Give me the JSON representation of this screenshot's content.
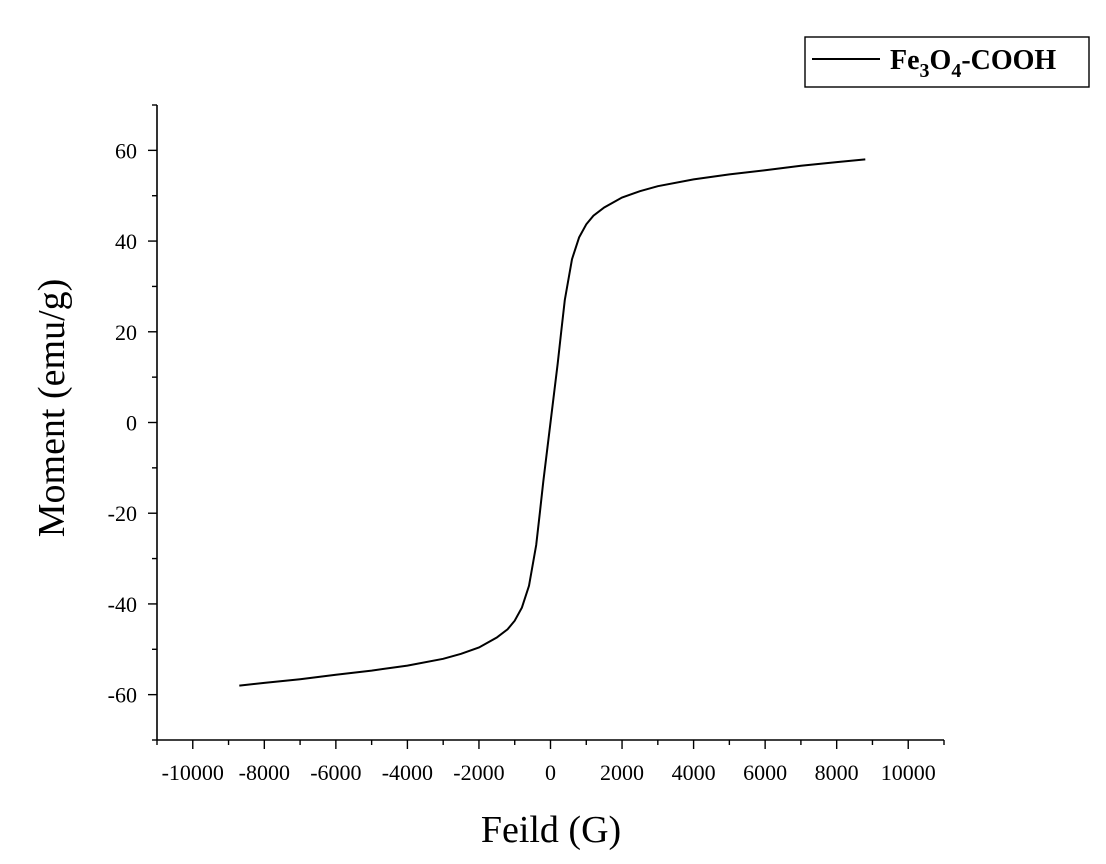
{
  "chart_data": {
    "type": "line",
    "title": "",
    "xlabel": "Feild (G)",
    "ylabel": "Moment (emu/g)",
    "xlim": [
      -11000,
      11000
    ],
    "ylim": [
      -70,
      70
    ],
    "x_ticks": [
      -10000,
      -8000,
      -6000,
      -4000,
      -2000,
      0,
      2000,
      4000,
      6000,
      8000,
      10000
    ],
    "y_ticks": [
      -60,
      -40,
      -20,
      0,
      20,
      40,
      60
    ],
    "grid": false,
    "legend": {
      "position": "top-right"
    },
    "series": [
      {
        "name": "Fe3O4-COOH",
        "name_parts": {
          "pre": "Fe",
          "sub1": "3",
          "mid": "O",
          "sub2": "4",
          "post": "-COOH"
        },
        "color": "#000000",
        "x": [
          -8700,
          -8000,
          -7000,
          -6000,
          -5000,
          -4000,
          -3000,
          -2500,
          -2000,
          -1500,
          -1200,
          -1000,
          -800,
          -600,
          -400,
          -300,
          -200,
          -100,
          0,
          100,
          200,
          300,
          400,
          600,
          800,
          1000,
          1200,
          1500,
          2000,
          2500,
          3000,
          4000,
          5000,
          6000,
          7000,
          8000,
          8800
        ],
        "y": [
          -58.0,
          -57.4,
          -56.6,
          -55.6,
          -54.7,
          -53.6,
          -52.1,
          -51.0,
          -49.6,
          -47.4,
          -45.6,
          -43.7,
          -40.8,
          -36.0,
          -27.0,
          -20.0,
          -13.0,
          -6.5,
          0.0,
          6.5,
          13.0,
          20.0,
          27.0,
          36.0,
          40.8,
          43.7,
          45.6,
          47.4,
          49.6,
          51.0,
          52.1,
          53.6,
          54.7,
          55.6,
          56.6,
          57.4,
          58.0
        ]
      }
    ]
  }
}
